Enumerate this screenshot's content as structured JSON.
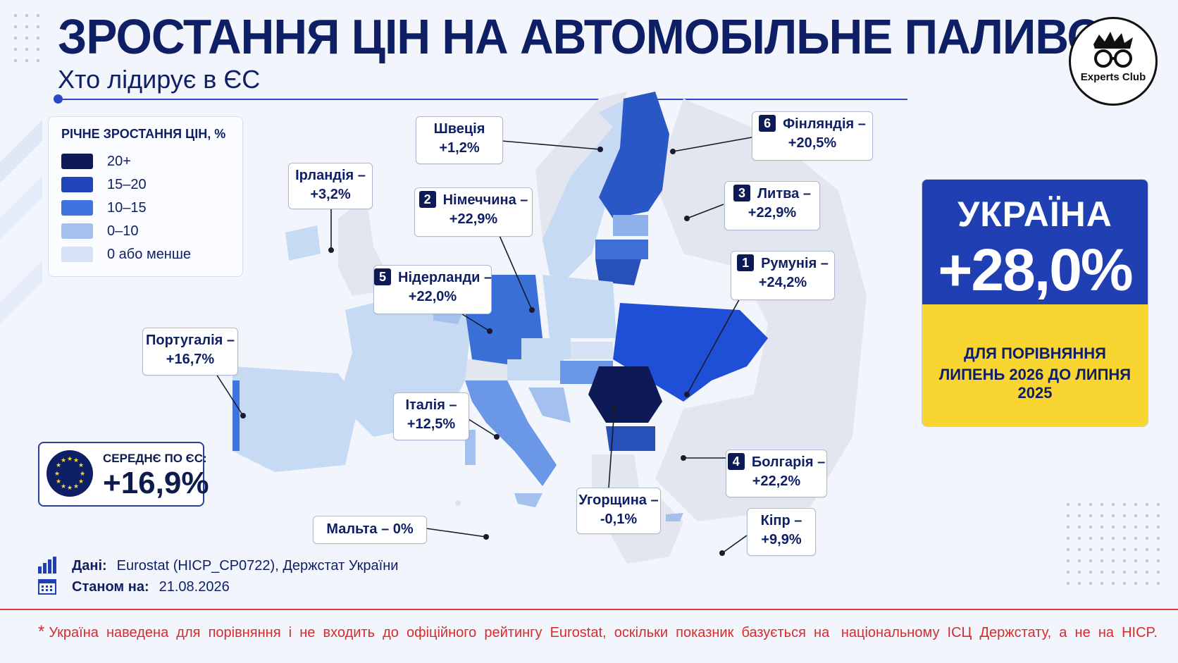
{
  "header": {
    "title": "ЗРОСТАННЯ ЦІН НА АВТОМОБІЛЬНЕ ПАЛИВО",
    "subtitle": "Хто лідирує в ЄС"
  },
  "logo": {
    "text": "Experts Club"
  },
  "legend": {
    "title": "РІЧНЕ ЗРОСТАННЯ ЦІН, %",
    "items": [
      {
        "label": "20+",
        "color": "#0d1a55"
      },
      {
        "label": "15–20",
        "color": "#1f45b8"
      },
      {
        "label": "10–15",
        "color": "#3d74de"
      },
      {
        "label": "0–10",
        "color": "#a3c0ee"
      },
      {
        "label": "0 або менше",
        "color": "#d6e3f7"
      }
    ]
  },
  "countries": [
    {
      "id": "sweden",
      "name": "Швеція",
      "value": "+1,2%",
      "rank": ""
    },
    {
      "id": "finland",
      "name": "Фінляндія –",
      "value": "+20,5%",
      "rank": "6"
    },
    {
      "id": "ireland",
      "name": "Ірландія –",
      "value": "+3,2%",
      "rank": ""
    },
    {
      "id": "germany",
      "name": "Німеччина –",
      "value": "+22,9%",
      "rank": "2"
    },
    {
      "id": "lithuania",
      "name": "Литва –",
      "value": "+22,9%",
      "rank": "3"
    },
    {
      "id": "netherlands",
      "name": "Нідерланди –",
      "value": "+22,0%",
      "rank": "5"
    },
    {
      "id": "romania",
      "name": "Румунія –",
      "value": "+24,2%",
      "rank": "1"
    },
    {
      "id": "portugal",
      "name": "Португалія –",
      "value": "+16,7%",
      "rank": ""
    },
    {
      "id": "italy",
      "name": "Італія –",
      "value": "+12,5%",
      "rank": ""
    },
    {
      "id": "bulgaria",
      "name": "Болгарія –",
      "value": "+22,2%",
      "rank": "4"
    },
    {
      "id": "hungary",
      "name": "Угорщина –",
      "value": "-0,1%",
      "rank": ""
    },
    {
      "id": "cyprus",
      "name": "Кіпр –",
      "value": "+9,9%",
      "rank": ""
    },
    {
      "id": "malta",
      "name": "Мальта – 0%",
      "value": "",
      "rank": ""
    }
  ],
  "ukraine": {
    "name": "УКРАЇНА",
    "value": "+28,0%",
    "note_line1": "ДЛЯ ПОРІВНЯННЯ",
    "note_line2": "ЛИПЕНЬ 2026 ДО ЛИПНЯ 2025"
  },
  "eu_average": {
    "label": "СЕРЕДНЄ ПО ЄС:",
    "value": "+16,9%"
  },
  "source": {
    "data_label": "Дані:",
    "data_value": "Eurostat (HICP_CP0722), Держстат України",
    "date_label": "Станом на:",
    "date_value": "21.08.2026"
  },
  "footnote": {
    "star": "*",
    "text": "Україна  наведена  для  порівняння  і  не  входить  до  офіційного  рейтингу  Eurostat,  оскільки  показник  базується  на   національному  ІСЦ  Держстату,  а  не  на  HICP."
  }
}
